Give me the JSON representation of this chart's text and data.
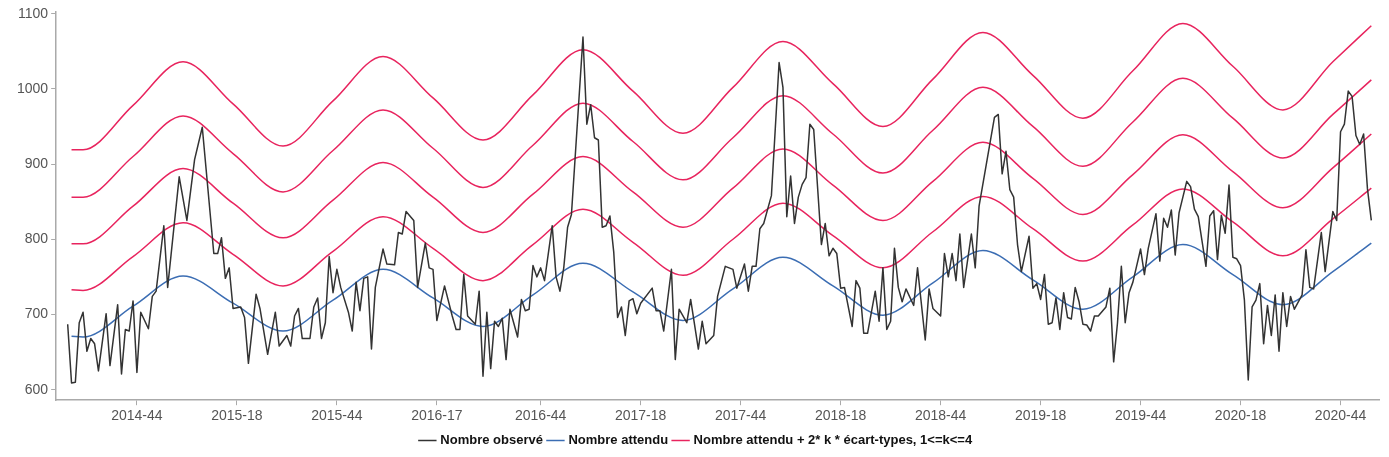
{
  "chart_data": {
    "type": "line",
    "x": [
      "2014-06-30",
      "2014-07-21",
      "2014-10-20",
      "2015-01-19",
      "2015-04-20",
      "2015-07-20",
      "2015-10-19",
      "2016-01-18",
      "2016-04-18",
      "2016-07-18",
      "2016-10-17",
      "2017-01-16",
      "2017-04-17",
      "2017-07-17",
      "2017-10-16",
      "2018-01-15",
      "2018-04-16",
      "2018-07-16",
      "2018-10-15",
      "2019-01-14",
      "2019-04-15",
      "2019-07-15",
      "2019-10-14",
      "2020-01-13",
      "2020-04-13",
      "2020-07-13",
      "2020-10-12",
      "2020-12-21"
    ],
    "xlim": [
      "2014-06-02",
      "2021-01-04"
    ],
    "xticks": [
      {
        "value": "2014-10-27",
        "label": "2014-44"
      },
      {
        "value": "2015-04-27",
        "label": "2015-18"
      },
      {
        "value": "2015-10-26",
        "label": "2015-44"
      },
      {
        "value": "2016-04-25",
        "label": "2016-17"
      },
      {
        "value": "2016-10-31",
        "label": "2016-44"
      },
      {
        "value": "2017-05-01",
        "label": "2017-18"
      },
      {
        "value": "2017-10-30",
        "label": "2017-44"
      },
      {
        "value": "2018-04-30",
        "label": "2018-18"
      },
      {
        "value": "2018-10-29",
        "label": "2018-44"
      },
      {
        "value": "2019-04-29",
        "label": "2019-18"
      },
      {
        "value": "2019-10-28",
        "label": "2019-44"
      },
      {
        "value": "2020-04-27",
        "label": "2020-18"
      },
      {
        "value": "2020-10-26",
        "label": "2020-44"
      }
    ],
    "ylim": [
      586,
      1103
    ],
    "yticks": [
      600,
      700,
      800,
      900,
      1000,
      1100
    ],
    "grid": false,
    "legend": "bottom",
    "marker": "none",
    "line_style": "solid",
    "series": [
      {
        "name": "Nombre observé",
        "color": "#333333",
        "x": [
          "2014-06-23",
          "2014-06-30",
          "2014-07-07",
          "2014-07-14",
          "2014-07-21",
          "2014-07-28",
          "2014-08-04",
          "2014-08-11",
          "2014-08-18",
          "2014-09-01",
          "2014-09-08",
          "2014-09-22",
          "2014-09-29",
          "2014-10-06",
          "2014-10-13",
          "2014-10-20",
          "2014-10-27",
          "2014-11-03",
          "2014-11-17",
          "2014-11-24",
          "2014-12-01",
          "2014-12-15",
          "2014-12-22",
          "2015-01-12",
          "2015-01-26",
          "2015-02-09",
          "2015-02-23",
          "2015-03-16",
          "2015-03-23",
          "2015-03-30",
          "2015-04-06",
          "2015-04-13",
          "2015-04-20",
          "2015-05-04",
          "2015-05-11",
          "2015-05-18",
          "2015-06-01",
          "2015-06-08",
          "2015-06-22",
          "2015-07-06",
          "2015-07-13",
          "2015-07-27",
          "2015-08-03",
          "2015-08-10",
          "2015-08-17",
          "2015-08-24",
          "2015-09-07",
          "2015-09-14",
          "2015-09-21",
          "2015-09-28",
          "2015-10-05",
          "2015-10-12",
          "2015-10-19",
          "2015-10-26",
          "2015-11-02",
          "2015-11-16",
          "2015-11-23",
          "2015-11-30",
          "2015-12-07",
          "2015-12-14",
          "2015-12-21",
          "2015-12-28",
          "2016-01-04",
          "2016-01-18",
          "2016-01-25",
          "2016-02-08",
          "2016-02-15",
          "2016-02-22",
          "2016-02-29",
          "2016-03-14",
          "2016-03-21",
          "2016-04-04",
          "2016-04-11",
          "2016-04-18",
          "2016-04-25",
          "2016-05-09",
          "2016-05-23",
          "2016-05-30",
          "2016-06-06",
          "2016-06-13",
          "2016-06-20",
          "2016-07-04",
          "2016-07-11",
          "2016-07-18",
          "2016-07-25",
          "2016-08-01",
          "2016-08-08",
          "2016-08-15",
          "2016-08-22",
          "2016-08-29",
          "2016-09-05",
          "2016-09-19",
          "2016-09-26",
          "2016-10-03",
          "2016-10-10",
          "2016-10-17",
          "2016-10-24",
          "2016-10-31",
          "2016-11-07",
          "2016-11-21",
          "2016-11-28",
          "2016-12-05",
          "2016-12-12",
          "2016-12-19",
          "2016-12-26",
          "2017-01-16",
          "2017-01-23",
          "2017-01-30",
          "2017-02-06",
          "2017-02-13",
          "2017-02-20",
          "2017-02-27",
          "2017-03-06",
          "2017-03-13",
          "2017-03-20",
          "2017-03-27",
          "2017-04-03",
          "2017-04-10",
          "2017-04-17",
          "2017-04-24",
          "2017-05-01",
          "2017-05-22",
          "2017-05-29",
          "2017-06-05",
          "2017-06-12",
          "2017-06-26",
          "2017-07-03",
          "2017-07-10",
          "2017-07-24",
          "2017-07-31",
          "2017-08-14",
          "2017-08-21",
          "2017-08-28",
          "2017-09-11",
          "2017-09-18",
          "2017-10-02",
          "2017-10-16",
          "2017-10-23",
          "2017-11-06",
          "2017-11-13",
          "2017-11-20",
          "2017-11-27",
          "2017-12-04",
          "2017-12-11",
          "2017-12-25",
          "2018-01-08",
          "2018-01-15",
          "2018-01-22",
          "2018-01-29",
          "2018-02-05",
          "2018-02-12",
          "2018-02-19",
          "2018-02-26",
          "2018-03-05",
          "2018-03-12",
          "2018-03-26",
          "2018-04-02",
          "2018-04-09",
          "2018-04-16",
          "2018-04-23",
          "2018-04-30",
          "2018-05-07",
          "2018-05-21",
          "2018-05-28",
          "2018-06-04",
          "2018-06-11",
          "2018-06-18",
          "2018-07-02",
          "2018-07-09",
          "2018-07-16",
          "2018-07-23",
          "2018-07-30",
          "2018-08-06",
          "2018-08-13",
          "2018-08-20",
          "2018-08-27",
          "2018-09-10",
          "2018-09-17",
          "2018-10-01",
          "2018-10-08",
          "2018-10-15",
          "2018-10-29",
          "2018-11-05",
          "2018-11-12",
          "2018-11-19",
          "2018-11-26",
          "2018-12-03",
          "2018-12-10",
          "2018-12-24",
          "2018-12-31",
          "2019-01-07",
          "2019-02-04",
          "2019-02-11",
          "2019-02-18",
          "2019-02-25",
          "2019-03-04",
          "2019-03-11",
          "2019-03-18",
          "2019-03-25",
          "2019-04-08",
          "2019-04-15",
          "2019-04-22",
          "2019-04-29",
          "2019-05-06",
          "2019-05-13",
          "2019-05-20",
          "2019-05-27",
          "2019-06-03",
          "2019-06-10",
          "2019-06-17",
          "2019-06-24",
          "2019-07-01",
          "2019-07-08",
          "2019-07-15",
          "2019-07-22",
          "2019-07-29",
          "2019-08-05",
          "2019-08-12",
          "2019-08-26",
          "2019-09-02",
          "2019-09-09",
          "2019-09-16",
          "2019-09-23",
          "2019-09-30",
          "2019-10-07",
          "2019-10-14",
          "2019-10-28",
          "2019-11-04",
          "2019-11-11",
          "2019-11-25",
          "2019-12-02",
          "2019-12-09",
          "2019-12-16",
          "2019-12-23",
          "2019-12-30",
          "2020-01-06",
          "2020-01-20",
          "2020-01-27",
          "2020-02-03",
          "2020-02-10",
          "2020-02-24",
          "2020-03-02",
          "2020-03-09",
          "2020-03-16",
          "2020-03-23",
          "2020-03-30",
          "2020-04-06",
          "2020-04-13",
          "2020-04-20",
          "2020-04-27",
          "2020-05-04",
          "2020-05-11",
          "2020-05-18",
          "2020-05-25",
          "2020-06-01",
          "2020-06-08",
          "2020-06-15",
          "2020-06-22",
          "2020-06-29",
          "2020-07-06",
          "2020-07-13",
          "2020-07-20",
          "2020-07-27",
          "2020-08-03",
          "2020-08-17",
          "2020-08-24",
          "2020-08-31",
          "2020-09-07",
          "2020-09-21",
          "2020-09-28",
          "2020-10-12",
          "2020-10-19",
          "2020-10-26",
          "2020-11-02",
          "2020-11-09",
          "2020-11-16",
          "2020-11-23",
          "2020-11-30",
          "2020-12-07",
          "2020-12-14",
          "2020-12-21"
        ],
        "values": [
          687,
          609,
          610,
          689,
          703,
          651,
          668,
          661,
          625,
          701,
          632,
          713,
          621,
          680,
          678,
          718,
          623,
          703,
          681,
          724,
          731,
          818,
          736,
          883,
          825,
          906,
          949,
          781,
          781,
          802,
          748,
          762,
          708,
          710,
          696,
          635,
          727,
          708,
          647,
          703,
          658,
          672,
          658,
          698,
          708,
          668,
          668,
          710,
          722,
          668,
          689,
          777,
          729,
          760,
          736,
          703,
          678,
          743,
          705,
          748,
          750,
          654,
          736,
          787,
          767,
          766,
          809,
          807,
          837,
          825,
          736,
          795,
          762,
          760,
          692,
          738,
          698,
          680,
          680,
          753,
          698,
          687,
          731,
          618,
          703,
          628,
          691,
          684,
          695,
          640,
          707,
          670,
          720,
          705,
          707,
          765,
          750,
          762,
          745,
          818,
          750,
          731,
          762,
          816,
          833,
          1069,
          953,
          979,
          935,
          932,
          816,
          818,
          831,
          783,
          696,
          710,
          672,
          718,
          721,
          701,
          715,
          735,
          705,
          705,
          678,
          760,
          640,
          707,
          689,
          720,
          654,
          691,
          661,
          672,
          724,
          764,
          760,
          735,
          767,
          731,
          764,
          764,
          814,
          821,
          858,
          1035,
          1002,
          830,
          884,
          821,
          856,
          873,
          882,
          953,
          946,
          793,
          821,
          778,
          788,
          781,
          735,
          736,
          684,
          745,
          735,
          675,
          675,
          731,
          691,
          762,
          680,
          691,
          788,
          736,
          717,
          734,
          712,
          762,
          666,
          734,
          708,
          698,
          781,
          750,
          781,
          745,
          807,
          736,
          807,
          762,
          844,
          962,
          966,
          887,
          917,
          866,
          856,
          793,
          757,
          804,
          735,
          741,
          720,
          753,
          687,
          689,
          722,
          680,
          729,
          696,
          694,
          736,
          717,
          687,
          686,
          678,
          698,
          698,
          710,
          735,
          637,
          689,
          764,
          689,
          729,
          743,
          787,
          753,
          788,
          834,
          771,
          828,
          816,
          839,
          779,
          835,
          877,
          870,
          840,
          830,
          764,
          831,
          838,
          773,
          832,
          808,
          872,
          776,
          774,
          765,
          719,
          613,
          710,
          719,
          741,
          661,
          712,
          672,
          726,
          651,
          729,
          684,
          724,
          707,
          726,
          786,
          736,
          734,
          809,
          757,
          837,
          825,
          943,
          953,
          997,
          990,
          938,
          926,
          940,
          867,
          825
        ]
      },
      {
        "name": "Nombre attendu",
        "color": "#3b6db3",
        "values": [
          671,
          670,
          711,
          751,
          715,
          678,
          719,
          760,
          722,
          684,
          726,
          768,
          730,
          692,
          734,
          776,
          738,
          699,
          742,
          785,
          746,
          707,
          750,
          793,
          753,
          713,
          757,
          795
        ]
      },
      {
        "name": "Nombre attendu + 2* k * écart-types, 1<=k<=4",
        "color": "#e8245e",
        "values": [
          733,
          732,
          777,
          822,
          780,
          738,
          784,
          830,
          788,
          745,
          793,
          840,
          796,
          752,
          800,
          848,
          805,
          762,
          810,
          857,
          814,
          771,
          819,
          867,
          823,
          778,
          827,
          868
        ]
      },
      {
        "color": "#e8245e",
        "values": [
          794,
          794,
          844,
          894,
          848,
          802,
          852,
          902,
          856,
          809,
          860,
          910,
          863,
          816,
          868,
          920,
          872,
          825,
          877,
          929,
          881,
          833,
          886,
          939,
          890,
          842,
          895,
          940
        ]
      },
      {
        "color": "#e8245e",
        "values": [
          856,
          856,
          910,
          964,
          914,
          863,
          918,
          972,
          921,
          869,
          925,
          981,
          930,
          879,
          935,
          991,
          940,
          888,
          945,
          1002,
          950,
          897,
          956,
          1014,
          961,
          908,
          966,
          1012
        ]
      },
      {
        "color": "#e8245e",
        "values": [
          919,
          919,
          978,
          1036,
          980,
          924,
          984,
          1043,
          988,
          932,
          992,
          1052,
          997,
          941,
          1002,
          1063,
          1007,
          950,
          1013,
          1075,
          1018,
          961,
          1024,
          1087,
          1030,
          972,
          1036,
          1084
        ]
      }
    ]
  }
}
